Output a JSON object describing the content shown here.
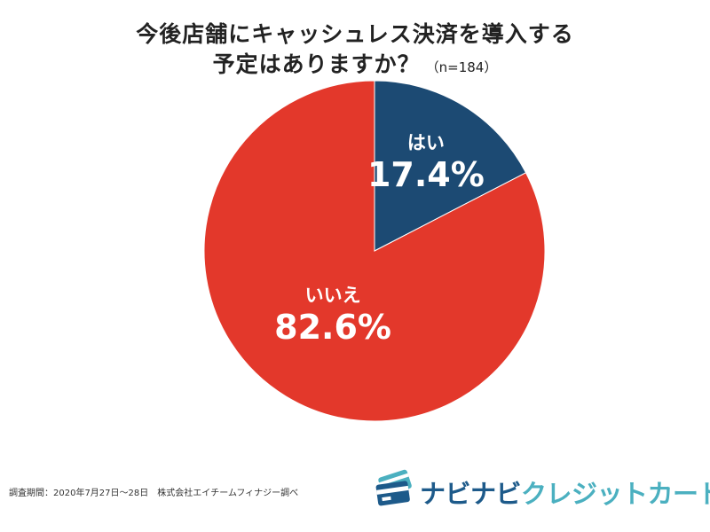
{
  "title": {
    "line1": "今後店舗にキャッシュレス決済を導入する",
    "line2": "予定はありますか？",
    "sample": "（n=184）"
  },
  "chart_data": {
    "type": "pie",
    "categories": [
      "はい",
      "いいえ"
    ],
    "values": [
      17.4,
      82.6
    ],
    "value_labels": [
      "17.4%",
      "82.6%"
    ],
    "colors": [
      "#1c4a73",
      "#e3382b"
    ],
    "start_angle_deg": 0,
    "direction": "clockwise"
  },
  "footnote": "調査期間：2020年7月27日〜28日　株式会社エイチームフィナジー調べ",
  "logo": {
    "part1": "ナビナビ",
    "part2": "クレジットカード",
    "icon": "credit-card-icon"
  }
}
